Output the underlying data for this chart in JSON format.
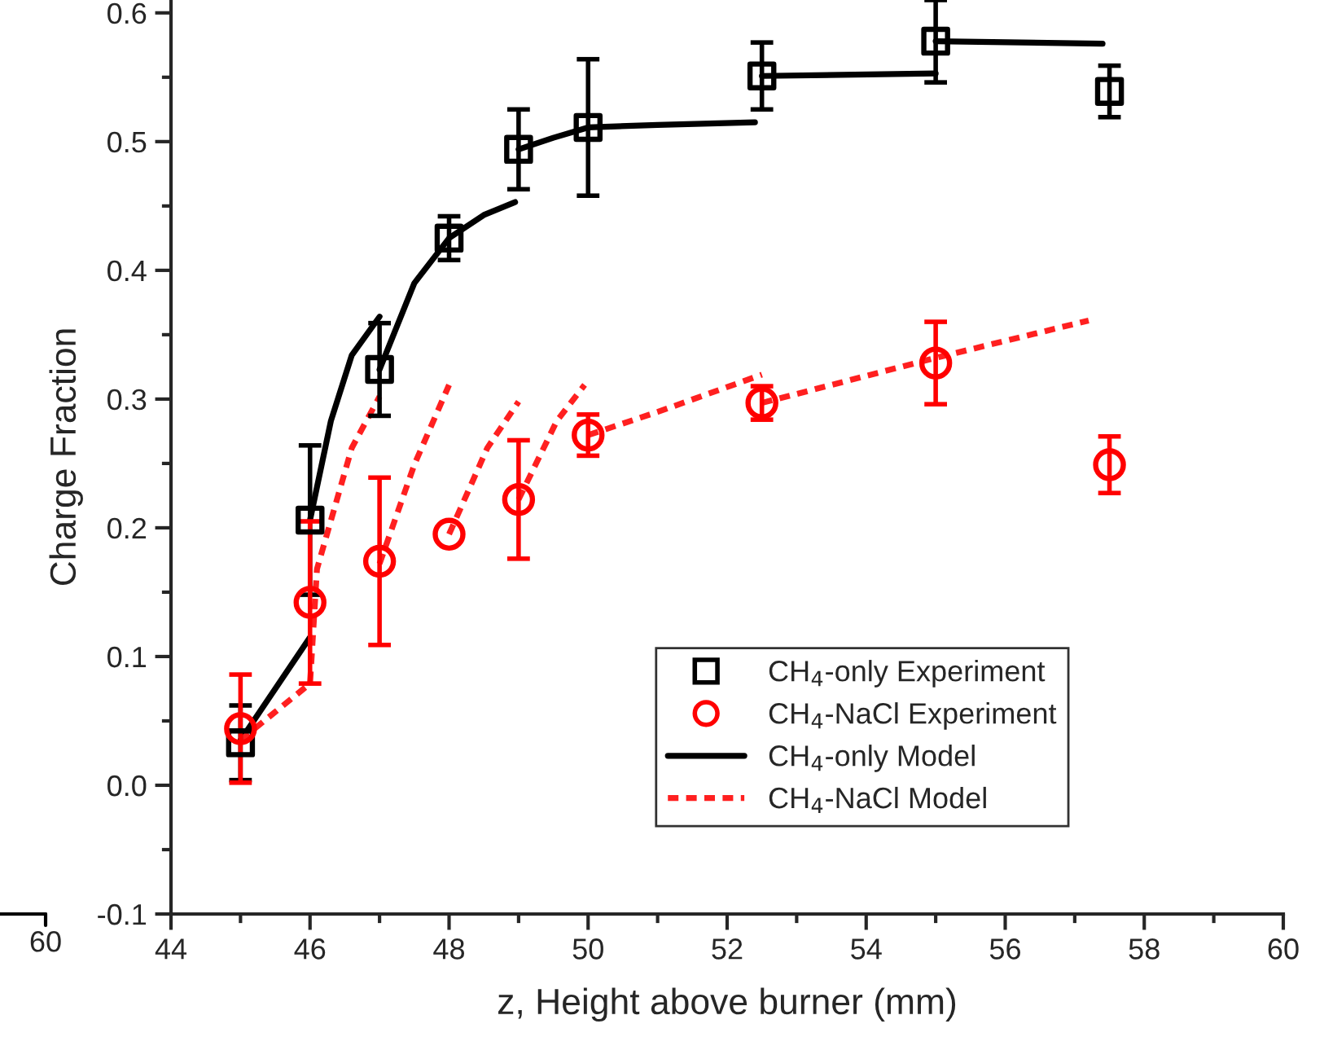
{
  "chart_data": {
    "type": "scatter",
    "xlabel": "z, Height above burner (mm)",
    "ylabel": "Charge Fraction",
    "xlim": [
      44,
      60
    ],
    "xticks": [
      44,
      46,
      48,
      50,
      52,
      54,
      56,
      58,
      60
    ],
    "ylim": [
      -0.1,
      0.61
    ],
    "yticks": [
      -0.1,
      {
        "value": 0,
        "label": "0.0"
      },
      0.1,
      0.2,
      0.3,
      0.4,
      0.5,
      0.6
    ],
    "grid": false,
    "legend": "bottom right",
    "annotations": [
      "60"
    ],
    "series": [
      {
        "name": "CH$_{4}$-only Experiment",
        "marker": "square",
        "color": "#000000",
        "x": [
          45,
          46,
          47,
          48,
          49,
          50,
          52.5,
          55,
          57.5
        ],
        "values": [
          0.033,
          0.206,
          0.323,
          0.425,
          0.494,
          0.511,
          0.551,
          0.578,
          0.539
        ],
        "errors": [
          0.029,
          0.058,
          0.036,
          0.017,
          0.031,
          0.053,
          0.026,
          0.032,
          0.02
        ]
      },
      {
        "name": "CH$_{4}$-NaCl Experiment",
        "marker": "circle",
        "color": "#ff0000",
        "x": [
          45,
          46,
          47,
          48,
          49,
          50,
          52.5,
          55,
          57.5
        ],
        "values": [
          0.044,
          0.142,
          0.174,
          0.195,
          0.222,
          0.272,
          0.297,
          0.328,
          0.249
        ],
        "errors": [
          0.042,
          0.063,
          0.065,
          null,
          0.046,
          0.016,
          0.013,
          0.032,
          0.022
        ]
      },
      {
        "name": "CH$_{4}$-only Model",
        "type": "line",
        "line_style": "solid",
        "color": "#000000",
        "x": [
          45,
          45.5,
          46
        ],
        "values": [
          0.035,
          0.075,
          0.115
        ]
      },
      {
        "type": "line",
        "line_style": "solid",
        "color": "#000000",
        "x": [
          46,
          46.3,
          46.6,
          47
        ],
        "values": [
          0.206,
          0.283,
          0.334,
          0.364
        ]
      },
      {
        "type": "line",
        "line_style": "solid",
        "color": "#000000",
        "x": [
          47,
          47.5,
          48,
          48.5,
          48.95
        ],
        "values": [
          0.323,
          0.39,
          0.425,
          0.443,
          0.453
        ]
      },
      {
        "type": "line",
        "line_style": "solid",
        "color": "#000000",
        "x": [
          49,
          49.5,
          50,
          51,
          52.4
        ],
        "values": [
          0.494,
          0.503,
          0.511,
          0.513,
          0.515
        ]
      },
      {
        "type": "line",
        "line_style": "solid",
        "color": "#000000",
        "x": [
          52.5,
          55
        ],
        "values": [
          0.551,
          0.553
        ]
      },
      {
        "type": "line",
        "line_style": "solid",
        "color": "#000000",
        "x": [
          55,
          57.4
        ],
        "values": [
          0.578,
          0.576
        ]
      },
      {
        "name": "CH$_{4}$-NaCl Model",
        "type": "line",
        "line_style": "dashed",
        "color": "#ff2020",
        "x": [
          45,
          45.5,
          46,
          46.1,
          46.6,
          47
        ],
        "values": [
          0.035,
          0.057,
          0.079,
          0.168,
          0.262,
          0.302
        ]
      },
      {
        "type": "line",
        "line_style": "dashed",
        "color": "#ff2020",
        "x": [
          47,
          47.5,
          48
        ],
        "values": [
          0.172,
          0.249,
          0.311
        ]
      },
      {
        "type": "line",
        "line_style": "dashed",
        "color": "#ff2020",
        "x": [
          48,
          48.55,
          49
        ],
        "values": [
          0.195,
          0.262,
          0.298
        ]
      },
      {
        "type": "line",
        "line_style": "dashed",
        "color": "#ff2020",
        "x": [
          49,
          49.55,
          49.95
        ],
        "values": [
          0.222,
          0.283,
          0.311
        ]
      },
      {
        "type": "line",
        "line_style": "dashed",
        "color": "#ff2020",
        "x": [
          50,
          51,
          52.5
        ],
        "values": [
          0.272,
          0.29,
          0.319
        ]
      },
      {
        "type": "line",
        "line_style": "dashed",
        "color": "#ff2020",
        "x": [
          52.5,
          55,
          57.2
        ],
        "values": [
          0.297,
          0.332,
          0.361
        ]
      }
    ]
  }
}
